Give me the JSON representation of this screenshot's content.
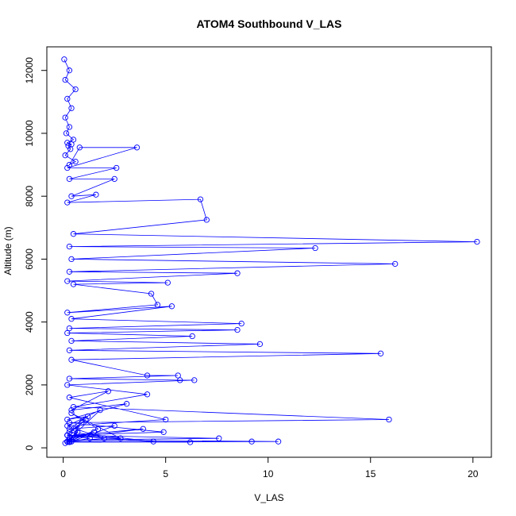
{
  "chart_data": {
    "type": "line",
    "title": "ATOM4 Southbound V_LAS",
    "xlabel": "V_LAS",
    "ylabel": "Altitude (m)",
    "xlim": [
      -0.8,
      20.9
    ],
    "ylim": [
      -300,
      12750
    ],
    "x_ticks": [
      0,
      5,
      10,
      15,
      20
    ],
    "y_ticks": [
      0,
      2000,
      4000,
      6000,
      8000,
      10000,
      12000
    ],
    "grid": false,
    "marker": "open-circle",
    "line_style": "lines-and-points",
    "color": "#0000ff",
    "series": [
      {
        "x": [
          0.05,
          0.3,
          0.1,
          0.6,
          0.2,
          0.4,
          0.1,
          0.3,
          0.15,
          0.5,
          0.2,
          0.4,
          0.25,
          0.35,
          0.1,
          0.6,
          0.3,
          0.8,
          3.6,
          0.2,
          2.6,
          0.3,
          2.5,
          0.4,
          1.6,
          0.2,
          6.7,
          7.0,
          0.5,
          20.2,
          0.3,
          12.3,
          0.4,
          16.2,
          0.3,
          8.5,
          0.2,
          5.1,
          0.5,
          4.3,
          4.6,
          0.2,
          5.3,
          0.4,
          8.7,
          0.3,
          8.5,
          0.2,
          6.3,
          0.4,
          9.6,
          0.3,
          15.5,
          0.4,
          4.1,
          5.6,
          0.3,
          5.7,
          6.4,
          0.2,
          4.1,
          0.5,
          15.9,
          0.3,
          4.9,
          0.2,
          7.6,
          0.4,
          10.5,
          0.3,
          9.2,
          0.2,
          6.2,
          0.4,
          2.5,
          0.3,
          1.2,
          0.2,
          3.1,
          0.4,
          2.2,
          0.3,
          5.0,
          0.2,
          1.8,
          0.5,
          3.9,
          0.3,
          1.5,
          0.2,
          2.0,
          0.6,
          1.1,
          0.3,
          4.4,
          0.2,
          2.8,
          0.4,
          1.7,
          0.3,
          0.9,
          0.2,
          1.3,
          0.4,
          0.7,
          0.3,
          0.5,
          0.2,
          0.1
        ],
        "y": [
          12350,
          12000,
          11700,
          11400,
          11100,
          10800,
          10500,
          10200,
          10000,
          9800,
          9700,
          9650,
          9600,
          9500,
          9300,
          9100,
          9000,
          9550,
          9550,
          8900,
          8900,
          8550,
          8550,
          8000,
          8050,
          7800,
          7900,
          7250,
          6800,
          6550,
          6400,
          6350,
          6000,
          5850,
          5600,
          5550,
          5300,
          5250,
          5200,
          4900,
          4550,
          4300,
          4500,
          4100,
          3950,
          3800,
          3750,
          3650,
          3550,
          3400,
          3300,
          3100,
          3000,
          2800,
          2300,
          2300,
          2200,
          2150,
          2150,
          2000,
          1700,
          1300,
          900,
          800,
          500,
          400,
          300,
          250,
          200,
          180,
          200,
          190,
          180,
          200,
          700,
          600,
          1000,
          900,
          1400,
          1200,
          1800,
          1600,
          900,
          700,
          1200,
          400,
          600,
          300,
          500,
          200,
          300,
          600,
          900,
          500,
          200,
          400,
          300,
          1100,
          600,
          200,
          800,
          400,
          300,
          200,
          500,
          250,
          400,
          200,
          150
        ]
      }
    ]
  }
}
